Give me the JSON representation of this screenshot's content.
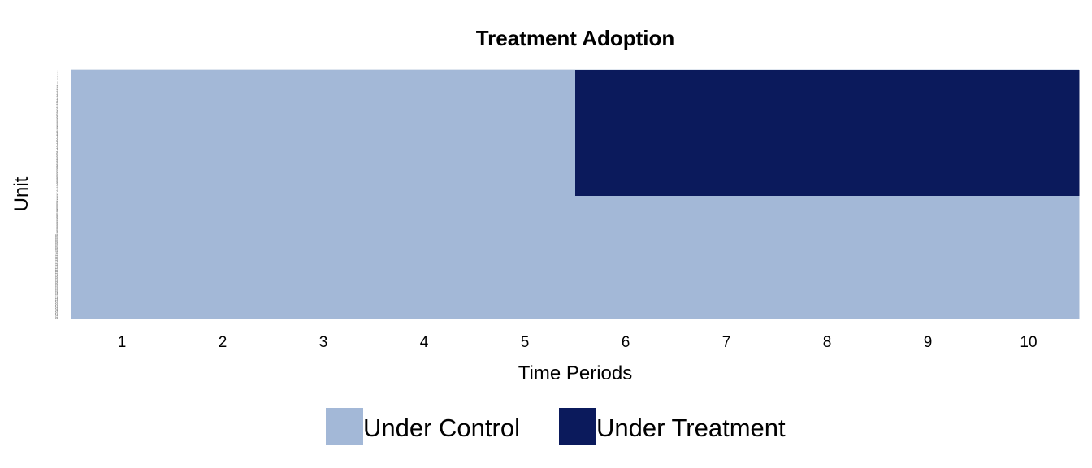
{
  "chart_data": {
    "type": "heatmap",
    "title": "Treatment Adoption",
    "xlabel": "Time Periods",
    "ylabel": "Unit",
    "x": [
      1,
      2,
      3,
      4,
      5,
      6,
      7,
      8,
      9,
      10
    ],
    "n_units": 150,
    "treatment_start_period": 6,
    "treated_units": 76,
    "grid": false,
    "legend_position": "bottom",
    "legend": [
      {
        "name": "Under Control",
        "color": "#A3B8D7"
      },
      {
        "name": "Under Treatment",
        "color": "#0B1A5C"
      }
    ]
  }
}
